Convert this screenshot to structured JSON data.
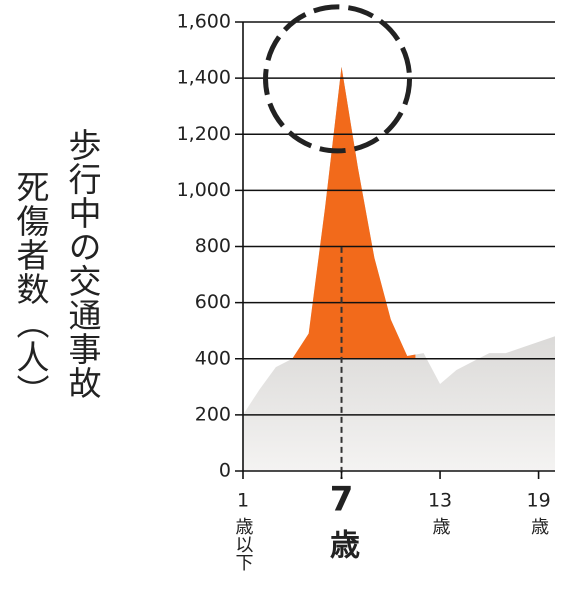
{
  "chart_data": {
    "type": "area",
    "y_label": [
      "歩行中の交通事故",
      "死傷者数（人）"
    ],
    "x": [
      1,
      2,
      3,
      4,
      5,
      6,
      7,
      8,
      9,
      10,
      11,
      12,
      13,
      14,
      15,
      16,
      17,
      18,
      19,
      20
    ],
    "values": [
      200,
      290,
      370,
      400,
      490,
      940,
      1440,
      1080,
      760,
      540,
      410,
      420,
      310,
      360,
      390,
      420,
      420,
      440,
      460,
      480
    ],
    "xlim": [
      1,
      20
    ],
    "xticks": [
      1,
      7,
      13,
      19
    ],
    "xtick_units": [
      "歳以下",
      "歳",
      "歳",
      "歳"
    ],
    "ylim": [
      0,
      1600
    ],
    "yticks": [
      0,
      200,
      400,
      600,
      800,
      {
        "value": 1000,
        "label": "1,000"
      },
      {
        "value": 1200,
        "label": "1,200"
      },
      {
        "value": 1400,
        "label": "1,400"
      },
      {
        "value": 1600,
        "label": "1,600"
      }
    ],
    "color": "#bdbbb8",
    "highlight_color": "#f26a1b",
    "highlight_above": 400,
    "highlight_range": [
      4,
      11
    ],
    "grid": true
  }
}
